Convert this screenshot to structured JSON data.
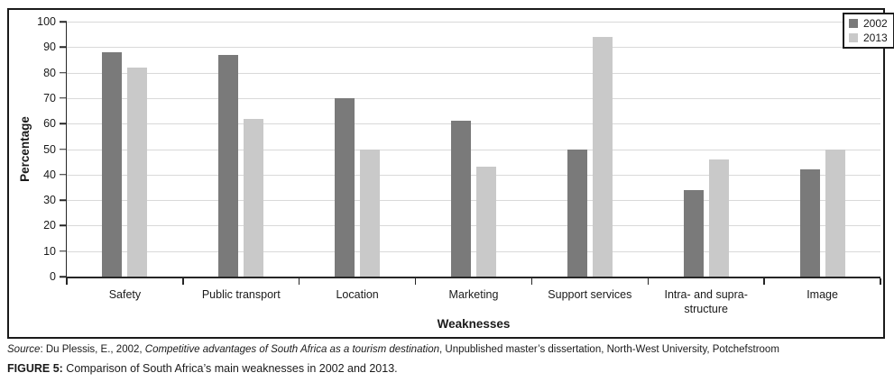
{
  "chart_data": {
    "type": "bar",
    "title": "",
    "xlabel": "Weaknesses",
    "ylabel": "Percentage",
    "ylim": [
      0,
      100
    ],
    "ytick_step": 10,
    "grid": true,
    "legend_position": "top-right-inside",
    "categories": [
      "Safety",
      "Public transport",
      "Location",
      "Marketing",
      "Support services",
      "Intra- and supra-structure",
      "Image"
    ],
    "series": [
      {
        "name": "2002",
        "color": "#7a7a7a",
        "values": [
          88,
          87,
          70,
          61,
          50,
          34,
          42
        ]
      },
      {
        "name": "2013",
        "color": "#c9c9c9",
        "values": [
          82,
          62,
          50,
          43,
          94,
          46,
          50
        ]
      }
    ]
  },
  "source_line": {
    "label": "Source",
    "part1": ": Du Plessis, E., 2002, ",
    "title": "Competitive advantages of South Africa as a tourism destination",
    "part2": ", Unpublished master’s dissertation, North-West University, Potchefstroom"
  },
  "caption": {
    "prefix": "FIGURE 5:",
    "text": " Comparison of South Africa’s main weaknesses in 2002 and 2013."
  },
  "colors": {
    "series_2002": "#7a7a7a",
    "series_2013": "#c9c9c9",
    "gridline": "#d9d9d9",
    "axis": "#262626",
    "frame_border": "#1a1a1a",
    "text": "#1a1a1a"
  }
}
